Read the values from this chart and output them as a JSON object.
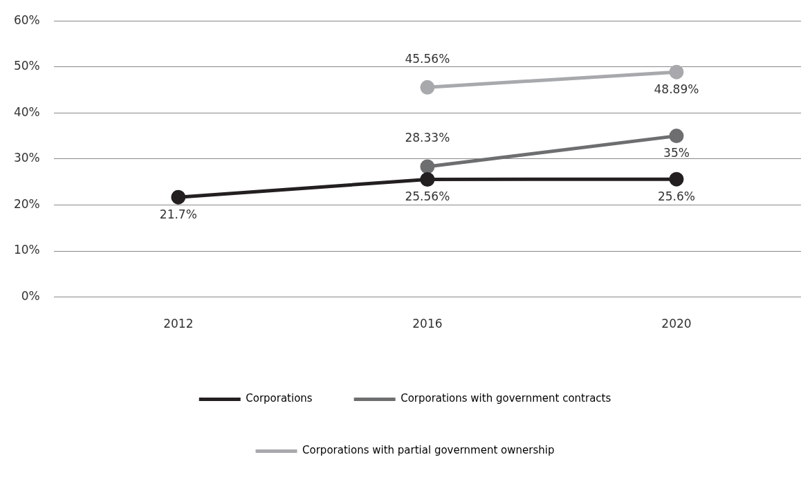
{
  "chart_data": {
    "type": "line",
    "categories": [
      "2012",
      "2016",
      "2020"
    ],
    "series": [
      {
        "name": "Corporations",
        "color": "#231f20",
        "values": [
          21.7,
          25.56,
          25.6
        ],
        "value_labels": [
          "21.7%",
          "25.56%",
          "25.6%"
        ]
      },
      {
        "name": "Corporations with government contracts",
        "color": "#6d6e70",
        "values": [
          null,
          28.33,
          35
        ],
        "value_labels": [
          null,
          "28.33%",
          "35%"
        ]
      },
      {
        "name": "Corporations with partial government ownership",
        "color": "#a7a9ac",
        "values": [
          null,
          45.56,
          48.89
        ],
        "value_labels": [
          null,
          "45.56%",
          "48.89%"
        ]
      }
    ],
    "ylim": [
      0,
      60
    ],
    "yticks": [
      {
        "value": 0,
        "label": "0%"
      },
      {
        "value": 10,
        "label": "10%"
      },
      {
        "value": 20,
        "label": "20%"
      },
      {
        "value": 30,
        "label": "30%"
      },
      {
        "value": 40,
        "label": "40%"
      },
      {
        "value": 50,
        "label": "50%"
      },
      {
        "value": 60,
        "label": "60%"
      }
    ],
    "grid": "y",
    "legend": "bottom",
    "marker": "circle",
    "line_style": "solid"
  }
}
